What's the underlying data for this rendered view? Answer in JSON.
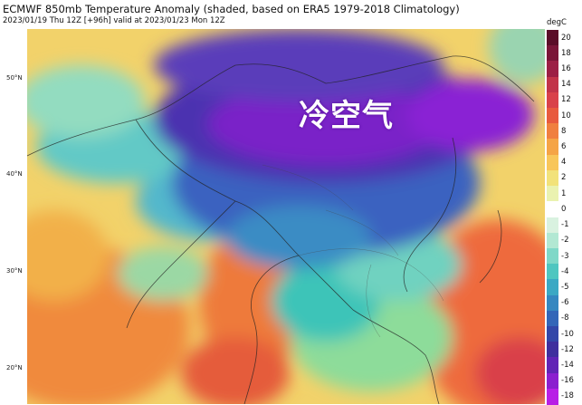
{
  "header": {
    "title": "ECMWF 850mb Temperature Anomaly (shaded, based on ERA5 1979-2018 Climatology)",
    "subtitle": "2023/01/19 Thu 12Z [+96h] valid at 2023/01/23 Mon 12Z"
  },
  "map": {
    "lat_labels": [
      "50°N",
      "40°N",
      "30°N",
      "20°N"
    ],
    "overlay_text": "冷空气"
  },
  "colorbar": {
    "unit": "degC",
    "ticks": [
      "20",
      "18",
      "16",
      "14",
      "12",
      "10",
      "8",
      "6",
      "4",
      "2",
      "1",
      "0",
      "-1",
      "-2",
      "-3",
      "-4",
      "-5",
      "-6",
      "-8",
      "-10",
      "-12",
      "-14",
      "-16",
      "-18"
    ],
    "colors": [
      "#5a0d28",
      "#7a1638",
      "#9c1f45",
      "#c23449",
      "#d9414a",
      "#e85a3e",
      "#f07f3f",
      "#f5a446",
      "#f8c65a",
      "#f2e27a",
      "#eaf2b0",
      "#ffffff",
      "#d9f2e0",
      "#b2e8d3",
      "#7fd8c8",
      "#4fc6c0",
      "#3ba8c4",
      "#3587c0",
      "#3366b8",
      "#3347a8",
      "#3f2f9e",
      "#6124b6",
      "#8b1fcf",
      "#b81fe6"
    ]
  }
}
